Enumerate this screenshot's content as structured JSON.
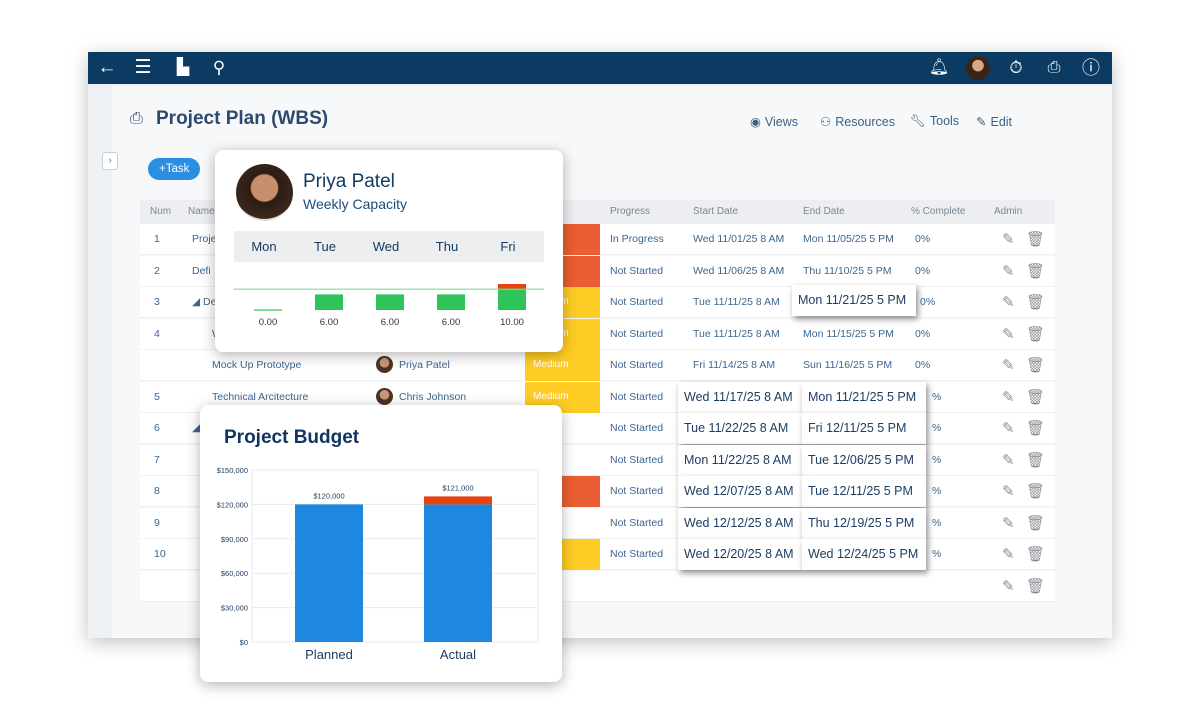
{
  "topbar": {
    "icons": [
      "back-arrow-icon",
      "menu-icon",
      "chart-icon",
      "search-icon",
      "bell-icon",
      "user-avatar",
      "stopwatch-icon",
      "print-icon",
      "help-icon"
    ]
  },
  "page": {
    "title": "Project Plan (WBS)",
    "add_task": "+Task",
    "actions": [
      {
        "label": "Views",
        "icon": "eye-icon"
      },
      {
        "label": "Resources",
        "icon": "people-icon"
      },
      {
        "label": "Tools",
        "icon": "wrench-icon"
      },
      {
        "label": "Edit",
        "icon": "edit-icon"
      }
    ]
  },
  "table": {
    "headers": {
      "num": "Num",
      "name": "Name",
      "progress": "Progress",
      "start": "Start Date",
      "end": "End Date",
      "pct": "% Complete",
      "admin": "Admin"
    },
    "rows": [
      {
        "num": "1",
        "name": "Proje",
        "resource": "",
        "priority": "",
        "prio_color": "#e8420f",
        "progress": "In Progress",
        "start": "Wed 11/01/25 8 AM",
        "end": "Mon 11/05/25 5 PM",
        "pct": "0%",
        "indent": 0
      },
      {
        "num": "2",
        "name": "Defi",
        "resource": "",
        "priority": "",
        "prio_color": "#e8420f",
        "progress": "Not Started",
        "start": "Wed 11/06/25 8 AM",
        "end": "Thu 11/10/25 5 PM",
        "pct": "0%",
        "indent": 0
      },
      {
        "num": "3",
        "name": "◢ De",
        "resource": "",
        "priority": "Medium",
        "prio_color": "#ffc400",
        "progress": "Not Started",
        "start": "Tue 11/11/25 8 AM",
        "end": "Mon 11/21/25 5 PM",
        "end_popped": true,
        "pct": "0%",
        "indent": 0
      },
      {
        "num": "4",
        "name": "W",
        "resource": "",
        "priority": "Medium",
        "prio_color": "#ffc400",
        "progress": "Not Started",
        "start": "Tue 11/11/25 8 AM",
        "end": "Mon 11/15/25 5 PM",
        "pct": "0%",
        "indent": 2
      },
      {
        "num": "",
        "name": "Mock Up Prototype",
        "resource": "Priya Patel",
        "priority": "Medium",
        "prio_color": "#ffc400",
        "progress": "Not Started",
        "start": "Fri 11/14/25 8 AM",
        "end": "Sun 11/16/25 5 PM",
        "pct": "0%",
        "indent": 2
      },
      {
        "num": "5",
        "name": "Technical Arcitecture",
        "resource": "Chris Johnson",
        "priority": "Medium",
        "prio_color": "#ffc400",
        "progress": "Not Started",
        "start": "Wed 11/17/25 8 AM",
        "end": "Mon 11/21/25 5 PM",
        "popped": true,
        "pct": "%",
        "indent": 2
      },
      {
        "num": "6",
        "name": "◢ De",
        "resource": "",
        "priority": "",
        "prio_color": "",
        "progress": "Not Started",
        "start": "Tue 11/22/25 8 AM",
        "end": "Fri 12/11/25 5 PM",
        "popped": true,
        "pct": "%",
        "indent": 0
      },
      {
        "num": "7",
        "name": "",
        "resource": "",
        "priority": "",
        "prio_color": "",
        "progress": "Not Started",
        "start": "Mon 11/22/25 8 AM",
        "end": "Tue 12/06/25 5 PM",
        "popped": true,
        "pct": "%",
        "indent": 0
      },
      {
        "num": "8",
        "name": "",
        "resource": "",
        "priority": "",
        "prio_color": "#e8420f",
        "progress": "Not Started",
        "start": "Wed 12/07/25 8 AM",
        "end": "Tue 12/11/25 5 PM",
        "popped": true,
        "pct": "%",
        "indent": 0
      },
      {
        "num": "9",
        "name": "",
        "resource": "",
        "priority": "",
        "prio_color": "",
        "progress": "Not Started",
        "start": "Wed 12/12/25 8 AM",
        "end": "Thu 12/19/25 5 PM",
        "popped": true,
        "pct": "%",
        "indent": 0
      },
      {
        "num": "10",
        "name": "",
        "resource": "",
        "priority": "um",
        "prio_color": "#ffc400",
        "progress": "Not Started",
        "start": "Wed 12/20/25 8 AM",
        "end": "Wed 12/24/25 5 PM",
        "popped": true,
        "pct": "%",
        "indent": 0
      },
      {
        "num": "",
        "name": "",
        "resource": "",
        "priority": "",
        "prio_color": "",
        "progress": "",
        "start": "",
        "end": "",
        "pct": "",
        "indent": 0
      }
    ]
  },
  "capacity_card": {
    "name": "Priya Patel",
    "subtitle": "Weekly Capacity",
    "days": [
      "Mon",
      "Tue",
      "Wed",
      "Thu",
      "Fri"
    ],
    "hours": [
      0,
      6,
      6,
      6,
      10
    ],
    "labels": [
      "0.00",
      "6.00",
      "6.00",
      "6.00",
      "10.00"
    ],
    "capacity": 8,
    "colors": {
      "ok": "#2fc45a",
      "over": "#e8420f",
      "line": "#7fdc94"
    }
  },
  "chart_data": {
    "type": "bar",
    "title": "Project Budget",
    "categories": [
      "Planned",
      "Actual"
    ],
    "values": [
      120000,
      121000
    ],
    "data_labels": [
      "$120,000",
      "$121,000"
    ],
    "ylim": [
      0,
      150000
    ],
    "yticks": [
      "$0",
      "$30,000",
      "$60,000",
      "$90,000",
      "$120,000",
      "$150,000"
    ],
    "ytick_values": [
      0,
      30000,
      60000,
      90000,
      120000,
      150000
    ],
    "grid": true,
    "planned_limit": 120000,
    "colors": {
      "bar": "#1e88e0",
      "over": "#e8420f"
    }
  }
}
